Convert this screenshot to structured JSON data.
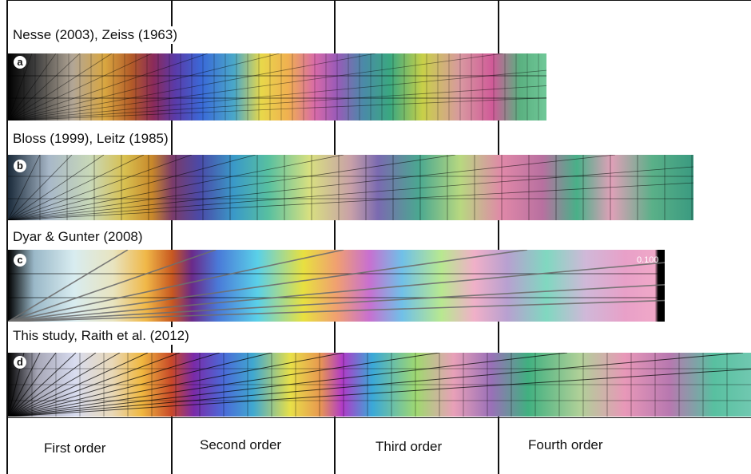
{
  "panels": [
    {
      "id": "a",
      "badge": "a",
      "source": "Nesse (2003), Zeiss (1963)"
    },
    {
      "id": "b",
      "badge": "b",
      "source": "Bloss (1999), Leitz (1985)"
    },
    {
      "id": "c",
      "badge": "c",
      "source": "Dyar & Gunter (2008)",
      "value_label": "0.100"
    },
    {
      "id": "d",
      "badge": "d",
      "source": "This study, Raith et al. (2012)"
    }
  ],
  "orders": [
    "First order",
    "Second order",
    "Third order",
    "Fourth order"
  ]
}
